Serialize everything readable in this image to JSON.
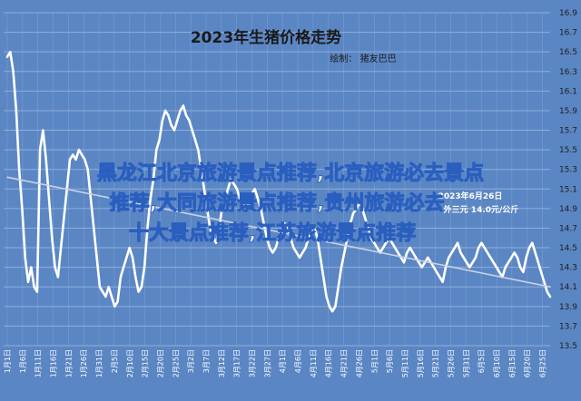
{
  "chart_data": {
    "type": "line",
    "title": "2023年生猪价格走势",
    "subtitle": "绘制： 猪友巴巴",
    "ylim": [
      13.5,
      16.9
    ],
    "yticks": [
      13.5,
      13.7,
      13.9,
      14.1,
      14.3,
      14.5,
      14.7,
      14.9,
      15.1,
      15.3,
      15.5,
      15.7,
      15.9,
      16.1,
      16.3,
      16.5,
      16.7,
      16.9
    ],
    "xtick_labels": [
      "1月1日",
      "1月6日",
      "1月11日",
      "1月16日",
      "1月21日",
      "1月26日",
      "1月31日",
      "2月5日",
      "2月10日",
      "2月15日",
      "2月20日",
      "2月25日",
      "3月2日",
      "3月7日",
      "3月12日",
      "3月17日",
      "3月22日",
      "3月27日",
      "4月1日",
      "4月6日",
      "4月11日",
      "4月16日",
      "4月21日",
      "4月26日",
      "5月1日",
      "5月6日",
      "5月11日",
      "5月16日",
      "5月21日",
      "5月26日",
      "5月31日",
      "6月5日",
      "6月10日",
      "6月15日",
      "6月20日",
      "6月25日"
    ],
    "grid": true,
    "series": [
      {
        "color": "#ffffff",
        "values": [
          16.45,
          16.5,
          16.3,
          15.9,
          15.3,
          14.9,
          14.4,
          14.15,
          14.3,
          14.1,
          14.05,
          15.5,
          15.7,
          15.4,
          15.0,
          14.6,
          14.3,
          14.2,
          14.5,
          14.8,
          15.1,
          15.4,
          15.45,
          15.4,
          15.5,
          15.45,
          15.4,
          15.3,
          15.0,
          14.7,
          14.4,
          14.1,
          14.05,
          14.0,
          14.1,
          14.0,
          13.9,
          13.95,
          14.2,
          14.3,
          14.4,
          14.5,
          14.4,
          14.2,
          14.05,
          14.1,
          14.3,
          14.7,
          15.0,
          15.2,
          15.5,
          15.6,
          15.8,
          15.9,
          15.85,
          15.75,
          15.7,
          15.8,
          15.9,
          15.95,
          15.85,
          15.8,
          15.7,
          15.6,
          15.5,
          15.3,
          15.1,
          14.9,
          14.7,
          14.6,
          14.55,
          14.7,
          14.9,
          15.0,
          15.1,
          15.2,
          15.15,
          15.1,
          15.0,
          14.95,
          14.9,
          14.95,
          15.05,
          15.1,
          15.0,
          14.9,
          14.75,
          14.6,
          14.5,
          14.45,
          14.5,
          14.6,
          14.7,
          14.75,
          14.7,
          14.6,
          14.5,
          14.45,
          14.4,
          14.45,
          14.5,
          14.6,
          14.65,
          14.7,
          14.6,
          14.4,
          14.2,
          14.0,
          13.9,
          13.85,
          13.9,
          14.1,
          14.3,
          14.45,
          14.6,
          14.75,
          14.85,
          14.9,
          14.95,
          14.9,
          14.8,
          14.7,
          14.6,
          14.55,
          14.5,
          14.45,
          14.5,
          14.55,
          14.6,
          14.55,
          14.5,
          14.45,
          14.4,
          14.35,
          14.45,
          14.5,
          14.45,
          14.4,
          14.35,
          14.3,
          14.35,
          14.4,
          14.35,
          14.3,
          14.25,
          14.2,
          14.15,
          14.3,
          14.4,
          14.45,
          14.5,
          14.55,
          14.45,
          14.4,
          14.35,
          14.3,
          14.35,
          14.4,
          14.5,
          14.55,
          14.5,
          14.45,
          14.4,
          14.35,
          14.3,
          14.25,
          14.2,
          14.3,
          14.35,
          14.4,
          14.45,
          14.4,
          14.3,
          14.25,
          14.4,
          14.5,
          14.55,
          14.45,
          14.35,
          14.25,
          14.15,
          14.05,
          14.0
        ]
      },
      {
        "type": "trendline",
        "color": "#c8d2e4",
        "values": [
          15.22,
          14.1
        ]
      }
    ],
    "annotations": [
      "2023年6月26日",
      "外三元 14.0元/公斤"
    ]
  },
  "watermark": {
    "lines": [
      "黑龙江北京旅游景点推荐,北京旅游必去景点",
      "推荐,大同旅游景点推荐,贵州旅游必去",
      "十大景点推荐,江苏旅游景点推荐"
    ]
  },
  "colors": {
    "background": "#5b86c4",
    "grid": "#8eaedb",
    "line": "#ffffff",
    "trend": "#c8d2e4"
  }
}
